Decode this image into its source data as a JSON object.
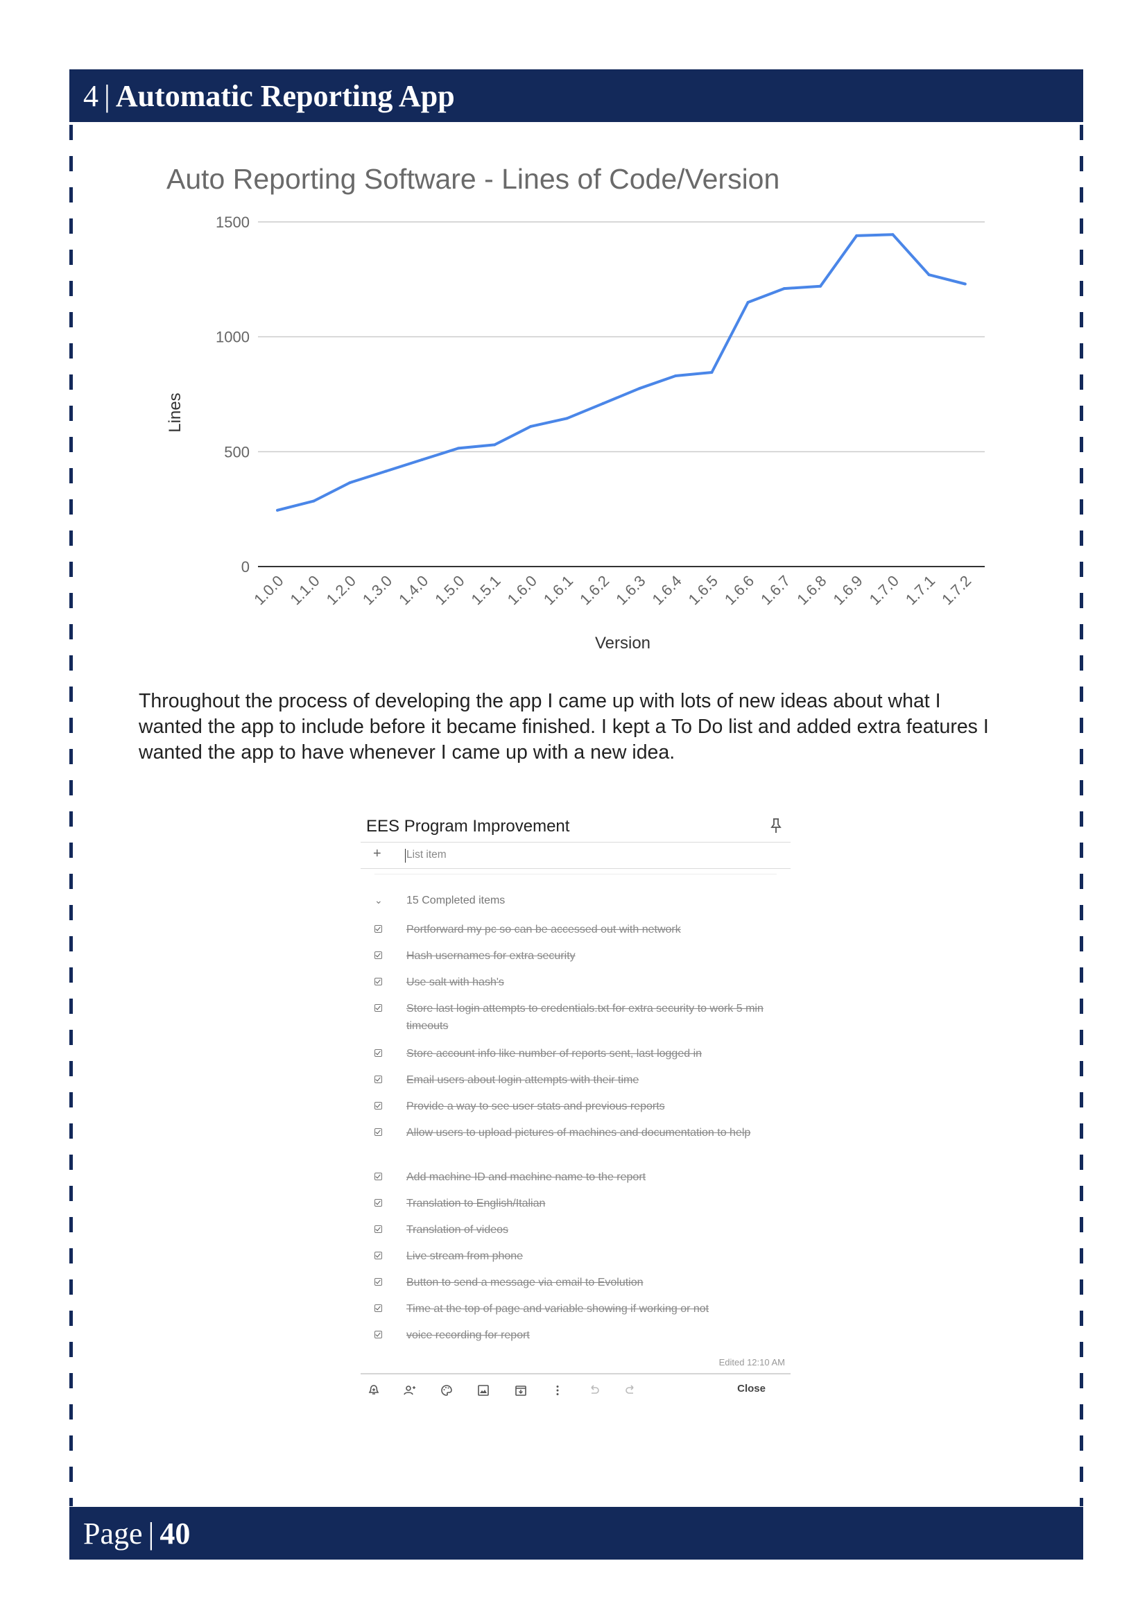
{
  "header": {
    "chapter_number": "4",
    "separator": "|",
    "title": "Automatic Reporting App"
  },
  "footer": {
    "label": "Page",
    "separator": "|",
    "number": "40"
  },
  "chart_data": {
    "type": "line",
    "title": "Auto Reporting Software - Lines of Code/Version",
    "xlabel": "Version",
    "ylabel": "Lines",
    "ylim": [
      0,
      1500
    ],
    "yticks": [
      0,
      500,
      1000,
      1500
    ],
    "grid": true,
    "legend": "none",
    "line_color": "#4a86e8",
    "categories": [
      "1.0.0",
      "1.1.0",
      "1.2.0",
      "1.3.0",
      "1.4.0",
      "1.5.0",
      "1.5.1",
      "1.6.0",
      "1.6.1",
      "1.6.2",
      "1.6.3",
      "1.6.4",
      "1.6.5",
      "1.6.6",
      "1.6.7",
      "1.6.8",
      "1.6.9",
      "1.7.0",
      "1.7.1",
      "1.7.2"
    ],
    "series": [
      {
        "values": [
          245,
          285,
          365,
          415,
          465,
          515,
          530,
          610,
          645,
          710,
          775,
          830,
          845,
          1150,
          1210,
          1220,
          1440,
          1445,
          1270,
          1230
        ]
      }
    ]
  },
  "paragraph": "Throughout the process of developing the app I came up with lots of new ideas about what I wanted the app to include before it became finished. I kept a To Do list and added extra features I wanted the app to have whenever I came up with a new idea.",
  "keep_note": {
    "title": "EES Program Improvement",
    "add_item_placeholder": "List item",
    "completed_label": "15 Completed items",
    "items": [
      "Portforward my pc so can be accessed out with network",
      "Hash usernames for extra security",
      "Use salt with hash's",
      "Store last login attempts to credentials.txt for extra security to work 5 min timeouts",
      "Store account info like number of reports sent, last logged in",
      "Email users about login attempts with their time",
      "Provide a way to see user stats and previous reports",
      "Allow users to upload pictures of machines and documentation to help",
      "Add machine ID and machine name to the report",
      "Translation to English/Italian",
      "Translation of videos",
      "Live stream from phone",
      "Button to send a message via email to Evolution",
      "Time at the top of page and variable showing if working or not",
      "voice recording for report"
    ],
    "edited": "Edited 12:10 AM",
    "toolbar_icons": [
      "remind-icon",
      "collaborator-icon",
      "palette-icon",
      "image-icon",
      "archive-icon",
      "more-icon",
      "undo-icon",
      "redo-icon"
    ],
    "close_label": "Close"
  }
}
